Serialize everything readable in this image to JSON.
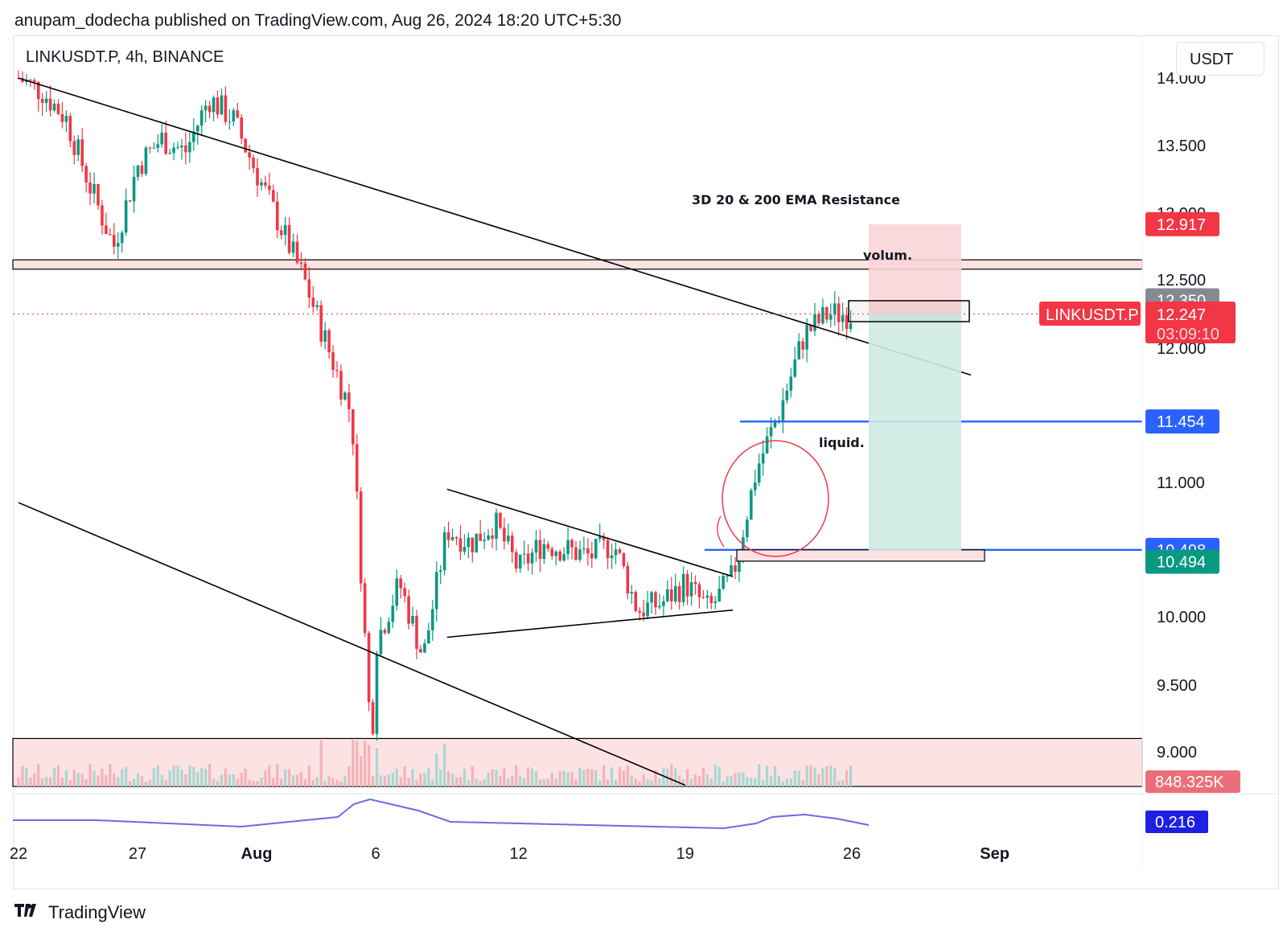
{
  "header": {
    "published": "anupam_dodecha published on TradingView.com, Aug 26, 2024 18:20 UTC+5:30"
  },
  "symbol_line": "LINKUSDT.P, 4h, BINANCE",
  "currency_button": "USDT",
  "footer": {
    "brand": "TradingView",
    "logo_icon": "tradingview-logo-icon"
  },
  "colors": {
    "up": "#089981",
    "down": "#f23645",
    "trendline": "#000000",
    "level_blue": "#2962ff",
    "zone_fill": "#fde2e4",
    "target_fill": "#cfeae3",
    "stop_fill": "#f9d5d8",
    "indicator": "#6a6ae8"
  },
  "chart_data": {
    "type": "candlestick",
    "title": "LINKUSDT.P, 4h, BINANCE",
    "xlabel": "",
    "ylabel": "",
    "x_ticks": [
      "22",
      "27",
      "Aug",
      "6",
      "12",
      "19",
      "26",
      "Sep"
    ],
    "y_ticks": [
      "14.000",
      "13.500",
      "13.000",
      "12.500",
      "12.000",
      "11.000",
      "10.000",
      "9.500",
      "9.000"
    ],
    "ylim": [
      8.9,
      14.1
    ],
    "grid": false,
    "price_labels": [
      {
        "label": "12.917",
        "value": 12.917,
        "kind": "stop"
      },
      {
        "label": "12.350",
        "value": 12.35,
        "kind": "gray"
      },
      {
        "label": "12.247",
        "value": 12.247,
        "kind": "last",
        "countdown": "03:09:10",
        "tag": "LINKUSDT.P"
      },
      {
        "label": "11.454",
        "value": 11.454,
        "kind": "blue"
      },
      {
        "label": "10.498",
        "value": 10.498,
        "kind": "blue"
      },
      {
        "label": "10.494",
        "value": 10.494,
        "kind": "target"
      }
    ],
    "annotations": [
      {
        "text": "3D 20 & 200 EMA Resistance"
      },
      {
        "text": "volum."
      },
      {
        "text": "liquid."
      }
    ],
    "support_zones": [
      [
        12.58,
        12.65
      ],
      [
        8.85,
        9.1
      ]
    ],
    "horizontal_levels": [
      11.454,
      10.498
    ],
    "trendlines": [
      {
        "name": "descending-resistance",
        "from": [
          "Jul 22",
          14.0
        ],
        "to": [
          "Aug 31",
          11.8
        ]
      },
      {
        "name": "descending-channel-lower",
        "from": [
          "Jul 22",
          10.85
        ],
        "to": [
          "Aug 19",
          8.75
        ]
      },
      {
        "name": "triangle-upper",
        "from": [
          "Aug 9",
          10.95
        ],
        "to": [
          "Aug 21",
          10.3
        ]
      },
      {
        "name": "triangle-lower",
        "from": [
          "Aug 9",
          9.85
        ],
        "to": [
          "Aug 21",
          10.05
        ]
      }
    ],
    "position": {
      "entry": 12.25,
      "stop": 12.917,
      "target": 10.494
    },
    "volume_last": "848.325K",
    "indicator_last": "0.216",
    "price_path": [
      [
        "Jul 22",
        14.0
      ],
      [
        "Jul 23",
        13.9
      ],
      [
        "Jul 24",
        13.7
      ],
      [
        "Jul 25",
        13.2
      ],
      [
        "Jul 26",
        12.75
      ],
      [
        "Jul 27",
        13.35
      ],
      [
        "Jul 28",
        13.55
      ],
      [
        "Jul 29",
        13.45
      ],
      [
        "Jul 30",
        13.85
      ],
      [
        "Jul 31",
        13.7
      ],
      [
        "Aug 1",
        13.3
      ],
      [
        "Aug 2",
        12.9
      ],
      [
        "Aug 3",
        12.5
      ],
      [
        "Aug 4",
        12.0
      ],
      [
        "Aug 5",
        11.5
      ],
      [
        "Aug 5 12h",
        10.0
      ],
      [
        "Aug 5 20h",
        9.0
      ],
      [
        "Aug 6",
        9.8
      ],
      [
        "Aug 7",
        10.25
      ],
      [
        "Aug 8",
        9.7
      ],
      [
        "Aug 9",
        10.65
      ],
      [
        "Aug 10",
        10.55
      ],
      [
        "Aug 11",
        10.7
      ],
      [
        "Aug 12",
        10.35
      ],
      [
        "Aug 13",
        10.55
      ],
      [
        "Aug 14",
        10.5
      ],
      [
        "Aug 15",
        10.45
      ],
      [
        "Aug 16",
        10.55
      ],
      [
        "Aug 17",
        10.05
      ],
      [
        "Aug 18",
        10.1
      ],
      [
        "Aug 19",
        10.25
      ],
      [
        "Aug 20",
        10.05
      ],
      [
        "Aug 21",
        10.3
      ],
      [
        "Aug 22",
        11.1
      ],
      [
        "Aug 23",
        11.55
      ],
      [
        "Aug 24",
        12.1
      ],
      [
        "Aug 25",
        12.25
      ],
      [
        "Aug 26",
        12.25
      ]
    ]
  }
}
